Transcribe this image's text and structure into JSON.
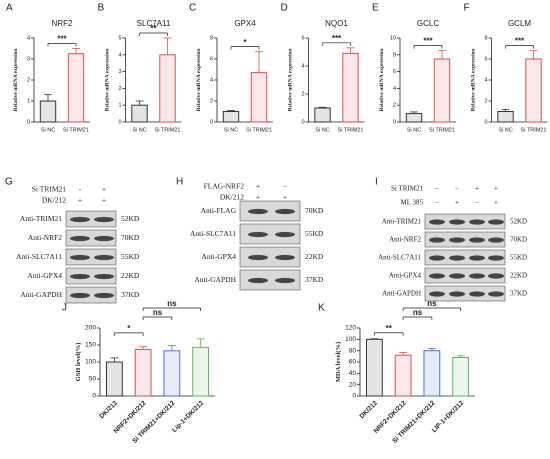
{
  "chart_data": [
    {
      "type": "bar",
      "letter": "A",
      "title": "NRF2",
      "ylabel": "Relative mRNA expression",
      "categories": [
        "Si NC",
        "Si TRIM21"
      ],
      "values": [
        1.0,
        3.25
      ],
      "errors": [
        0.3,
        0.25
      ],
      "colors": [
        "#333333",
        "#d9534f"
      ],
      "ylim": [
        0,
        4
      ],
      "yticks": [
        0,
        1,
        2,
        3,
        4
      ],
      "annotations": [
        "***"
      ]
    },
    {
      "type": "bar",
      "letter": "B",
      "title": "SLC7A11",
      "ylabel": "Relative mRNA expression",
      "categories": [
        "Si NC",
        "Si TRIM21"
      ],
      "values": [
        1.0,
        4.0
      ],
      "errors": [
        0.25,
        1.0
      ],
      "colors": [
        "#333333",
        "#d9534f"
      ],
      "ylim": [
        0,
        5
      ],
      "yticks": [
        0,
        1,
        2,
        3,
        4,
        5
      ],
      "annotations": [
        "**"
      ]
    },
    {
      "type": "bar",
      "letter": "C",
      "title": "GPX4",
      "ylabel": "Relative mRNA expression",
      "categories": [
        "Si NC",
        "Si TRIM21"
      ],
      "values": [
        1.0,
        4.7
      ],
      "errors": [
        0.1,
        2.0
      ],
      "colors": [
        "#333333",
        "#d9534f"
      ],
      "ylim": [
        0,
        8
      ],
      "yticks": [
        0,
        2,
        4,
        6,
        8
      ],
      "annotations": [
        "*"
      ]
    },
    {
      "type": "bar",
      "letter": "D",
      "title": "NQO1",
      "ylabel": "Relative mRNA expression",
      "categories": [
        "Si NC",
        "Si TRIM21"
      ],
      "values": [
        1.0,
        4.9
      ],
      "errors": [
        0.05,
        0.4
      ],
      "colors": [
        "#333333",
        "#d9534f"
      ],
      "ylim": [
        0,
        6
      ],
      "yticks": [
        0,
        2,
        4,
        6
      ],
      "annotations": [
        "***"
      ]
    },
    {
      "type": "bar",
      "letter": "E",
      "title": "GCLC",
      "ylabel": "Relative mRNA expression",
      "categories": [
        "Si NC",
        "Si TRIM21"
      ],
      "values": [
        1.0,
        7.5
      ],
      "errors": [
        0.2,
        1.0
      ],
      "colors": [
        "#333333",
        "#d9534f"
      ],
      "ylim": [
        0,
        10
      ],
      "yticks": [
        0,
        2,
        4,
        6,
        8,
        10
      ],
      "annotations": [
        "***"
      ]
    },
    {
      "type": "bar",
      "letter": "F",
      "title": "GCLM",
      "ylabel": "Relative mRNA expression",
      "categories": [
        "Si NC",
        "Si TRIM21"
      ],
      "values": [
        1.0,
        6.0
      ],
      "errors": [
        0.2,
        0.8
      ],
      "colors": [
        "#333333",
        "#d9534f"
      ],
      "ylim": [
        0,
        8
      ],
      "yticks": [
        0,
        2,
        4,
        6,
        8
      ],
      "annotations": [
        "***"
      ]
    },
    {
      "type": "bar",
      "letter": "J",
      "ylabel": "GSH  level(%)",
      "categories": [
        "DK/212",
        "NRF2+DK/212",
        "Si TRIM21+DK/212",
        "Lip-1+DK/212"
      ],
      "values": [
        100,
        137,
        133,
        143
      ],
      "errors": [
        12,
        8,
        15,
        25
      ],
      "colors": [
        "#333333",
        "#d9534f",
        "#4a6fd0",
        "#5cb85c"
      ],
      "ylim": [
        0,
        200
      ],
      "yticks": [
        0,
        50,
        100,
        150,
        200
      ],
      "annotations": [
        "*",
        "ns",
        "ns"
      ]
    },
    {
      "type": "bar",
      "letter": "K",
      "ylabel": "MDA level(%)",
      "categories": [
        "DK/212",
        "NRF2+DK/212",
        "Si TRIM21+DK/212",
        "LIP-1+DK/212"
      ],
      "values": [
        100,
        72,
        80,
        68
      ],
      "errors": [
        1,
        5,
        4,
        3
      ],
      "colors": [
        "#333333",
        "#d9534f",
        "#4a6fd0",
        "#5cb85c"
      ],
      "ylim": [
        0,
        120
      ],
      "yticks": [
        0,
        20,
        40,
        60,
        80,
        100,
        120
      ],
      "annotations": [
        "**",
        "ns",
        "ns"
      ]
    }
  ],
  "blots": [
    {
      "letter": "G",
      "conditions": [
        {
          "name": "Si TRIM21",
          "signs": [
            "-",
            "+"
          ]
        },
        {
          "name": "DK/212",
          "signs": [
            "+",
            "+"
          ]
        }
      ],
      "rows": [
        {
          "antibody": "Anti-TRIM21",
          "size": "52KD"
        },
        {
          "antibody": "Anti-NRF2",
          "size": "70KD"
        },
        {
          "antibody": "Anti-SLC7A11",
          "size": "55KD"
        },
        {
          "antibody": "Anti-GPX4",
          "size": "22KD"
        },
        {
          "antibody": "Anti-GAPDH",
          "size": "37KD"
        }
      ]
    },
    {
      "letter": "H",
      "conditions": [
        {
          "name": "FLAG-NRF2",
          "signs": [
            "+",
            "−"
          ]
        },
        {
          "name": "DK/212",
          "signs": [
            "+",
            "+"
          ]
        }
      ],
      "rows": [
        {
          "antibody": "Anti-FLAG",
          "size": "70KD"
        },
        {
          "antibody": "Anti-SLC7A11",
          "size": "55KD"
        },
        {
          "antibody": "Anti-GPX4",
          "size": "22KD"
        },
        {
          "antibody": "Anti-GAPDH",
          "size": "37KD"
        }
      ]
    },
    {
      "letter": "I",
      "conditions": [
        {
          "name": "Si TRIM21",
          "signs": [
            "−",
            "−",
            "+",
            "+"
          ]
        },
        {
          "name": "ML 385",
          "signs": [
            "−",
            "+",
            "−",
            "+"
          ]
        }
      ],
      "rows": [
        {
          "antibody": "Anti-TRIM21",
          "size": "52KD"
        },
        {
          "antibody": "Anti-NRF2",
          "size": "70KD"
        },
        {
          "antibody": "Anti-SLC7A11",
          "size": "55KD"
        },
        {
          "antibody": "Anti-GPX4",
          "size": "22KD"
        },
        {
          "antibody": "Anti-GAPDH",
          "size": "37KD"
        }
      ]
    }
  ]
}
